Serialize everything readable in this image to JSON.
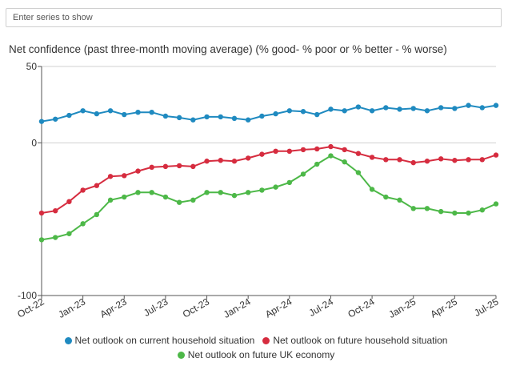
{
  "search": {
    "placeholder": "Enter series to show"
  },
  "chart_data": {
    "type": "line",
    "title": "Net confidence (past three-month moving average) (% good- % poor or % better - % worse)",
    "xlabel": "",
    "ylabel": "",
    "ylim": [
      -100,
      50
    ],
    "yticks": [
      50,
      0,
      -100
    ],
    "grid": true,
    "legend_position": "bottom",
    "x": [
      "2022-10",
      "2022-11",
      "2022-12",
      "2023-01",
      "2023-02",
      "2023-03",
      "2023-04",
      "2023-05",
      "2023-06",
      "2023-07",
      "2023-08",
      "2023-09",
      "2023-10",
      "2023-11",
      "2023-12",
      "2024-01",
      "2024-02",
      "2024-03",
      "2024-04",
      "2024-05",
      "2024-06",
      "2024-07",
      "2024-08",
      "2024-09",
      "2024-10",
      "2024-11",
      "2024-12",
      "2025-01",
      "2025-02",
      "2025-03",
      "2025-04",
      "2025-05",
      "2025-06",
      "2025-07"
    ],
    "tick_labels": [
      "Oct-22",
      "Jan-23",
      "Apr-23",
      "Jul-23",
      "Oct-23",
      "Jan-24",
      "Apr-24",
      "Jul-24",
      "Oct-24",
      "Jan-25",
      "Apr-25",
      "Jul-25"
    ],
    "series": [
      {
        "name": "Net outlook on current household situation",
        "color": "#1f8ac0",
        "values": [
          14,
          15.5,
          18,
          21,
          19,
          21,
          18.5,
          20,
          20,
          17.5,
          16.5,
          15,
          17,
          17,
          16,
          15,
          17.5,
          19,
          21,
          20.5,
          18.5,
          22,
          21,
          23.5,
          21,
          23,
          22,
          22.5,
          21,
          23,
          22.5,
          24.5,
          23,
          24.5
        ]
      },
      {
        "name": "Net outlook on future household situation",
        "color": "#d62c3f",
        "values": [
          -46,
          -44.5,
          -38.5,
          -31,
          -28,
          -22,
          -21.5,
          -18.5,
          -16,
          -15.5,
          -15,
          -15.5,
          -12,
          -11.5,
          -12,
          -10,
          -7.5,
          -5.5,
          -5.5,
          -4.5,
          -4,
          -2.5,
          -4.5,
          -7,
          -9.5,
          -11,
          -11,
          -13,
          -12,
          -10.5,
          -11.5,
          -11,
          -11,
          -8
        ]
      },
      {
        "name": "Net outlook on future UK economy",
        "color": "#4db848",
        "values": [
          -63.5,
          -62,
          -59.5,
          -53,
          -47,
          -37.5,
          -35.5,
          -32.5,
          -32.5,
          -35.5,
          -39,
          -37.5,
          -32.5,
          -32.5,
          -34.5,
          -32.5,
          -31,
          -29,
          -26,
          -20.5,
          -14,
          -8.5,
          -12.5,
          -19.5,
          -30.5,
          -35.5,
          -37.5,
          -43,
          -43,
          -45,
          -46,
          -46,
          -44,
          -40
        ]
      }
    ]
  }
}
